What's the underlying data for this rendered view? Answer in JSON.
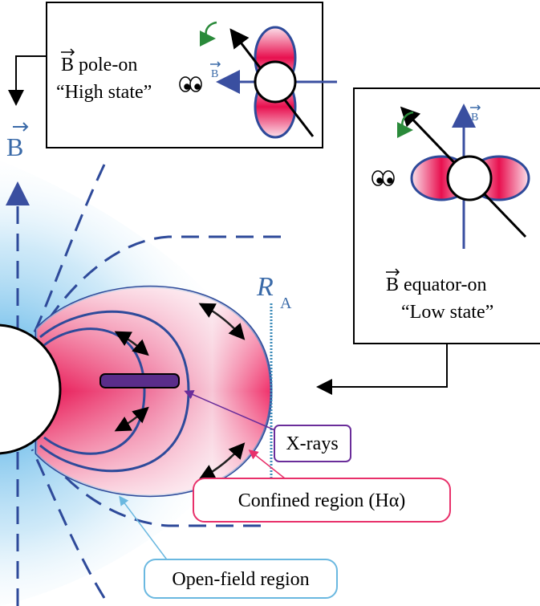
{
  "insets": [
    {
      "label": "B pole-on",
      "state": "“High state”",
      "axis_label": "B"
    },
    {
      "label": "B equator-on",
      "state": "“Low state”",
      "axis_label": "B"
    }
  ],
  "main": {
    "axis_label": "B",
    "radius_label": "R",
    "radius_subscript": "A"
  },
  "callouts": {
    "xrays": "X-rays",
    "confined": "Confined region (Hα)",
    "open_field": "Open-field region"
  }
}
